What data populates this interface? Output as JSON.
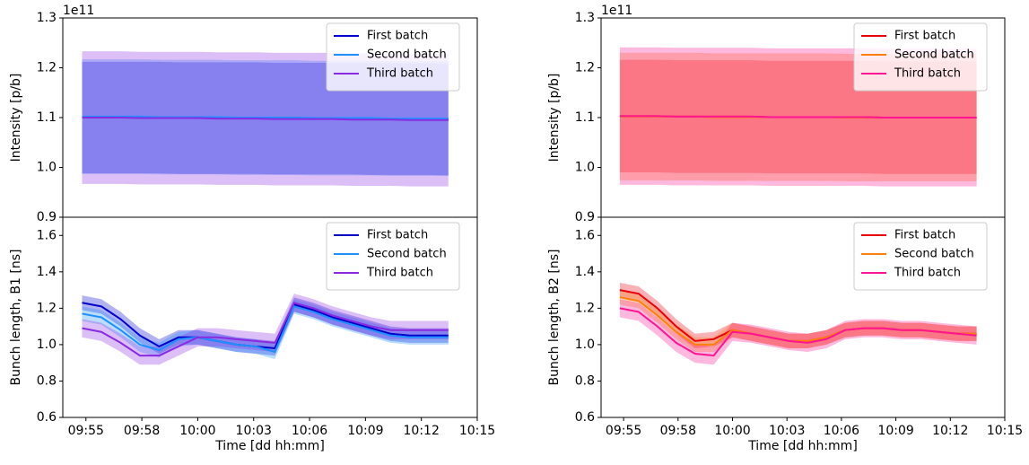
{
  "chart_data": [
    {
      "type": "line",
      "ylabel": "Intensity [p/b]",
      "y_offset_label": "1e11",
      "x": [
        594.8,
        595.8,
        596.8,
        597.8,
        598.8,
        599.8,
        600.8,
        601.8,
        602.8,
        603.8,
        604.8,
        605.8,
        606.8,
        607.8,
        608.8,
        609.8,
        610.8,
        611.8,
        612.8,
        613.8
      ],
      "xlim": [
        593.8,
        615.3
      ],
      "ylim": [
        0.9,
        1.3
      ],
      "yticks": [
        0.9,
        {
          "value": 1,
          "label": "1.0"
        },
        1.1,
        1.2,
        1.3
      ],
      "legend": "upper right",
      "series": [
        {
          "name": "First batch",
          "color": "#0000cc",
          "spread": 0.112,
          "values": [
            1.1,
            1.1,
            1.1,
            1.1,
            1.1,
            1.099,
            1.099,
            1.099,
            1.099,
            1.099,
            1.098,
            1.098,
            1.098,
            1.098,
            1.098,
            1.097,
            1.097,
            1.097,
            1.097,
            1.096
          ]
        },
        {
          "name": "Second batch",
          "color": "#1e90ff",
          "spread": 0.115,
          "values": [
            1.102,
            1.102,
            1.102,
            1.102,
            1.101,
            1.101,
            1.101,
            1.101,
            1.1,
            1.1,
            1.1,
            1.1,
            1.099,
            1.099,
            1.099,
            1.099,
            1.098,
            1.098,
            1.098,
            1.098
          ]
        },
        {
          "name": "Third batch",
          "color": "#8a2be2",
          "spread": 0.133,
          "values": [
            1.1,
            1.1,
            1.1,
            1.099,
            1.099,
            1.099,
            1.099,
            1.098,
            1.098,
            1.098,
            1.097,
            1.097,
            1.097,
            1.097,
            1.096,
            1.096,
            1.096,
            1.095,
            1.095,
            1.095
          ]
        }
      ]
    },
    {
      "type": "line",
      "ylabel": "Bunch length, B1 [ns]",
      "xlabel": "Time [dd hh:mm]",
      "x": [
        594.8,
        595.8,
        596.8,
        597.8,
        598.8,
        599.8,
        600.8,
        601.8,
        602.8,
        603.8,
        604.8,
        605.8,
        606.8,
        607.8,
        608.8,
        609.8,
        610.8,
        611.8,
        612.8,
        613.8
      ],
      "xlim": [
        593.8,
        615.3
      ],
      "ylim": [
        0.6,
        1.7
      ],
      "xticks": [
        {
          "value": 595,
          "label": "09:55"
        },
        {
          "value": 597.9,
          "label": "09:58"
        },
        {
          "value": 600.8,
          "label": "10:00"
        },
        {
          "value": 603.7,
          "label": "10:03"
        },
        {
          "value": 606.6,
          "label": "10:06"
        },
        {
          "value": 609.5,
          "label": "10:09"
        },
        {
          "value": 612.4,
          "label": "10:12"
        },
        {
          "value": 615.3,
          "label": "10:15"
        }
      ],
      "yticks": [
        0.6,
        0.8,
        {
          "value": 1,
          "label": "1.0"
        },
        1.2,
        1.4,
        1.6
      ],
      "legend": "upper right",
      "series": [
        {
          "name": "First batch",
          "color": "#0000cc",
          "spread": 0.04,
          "values": [
            1.23,
            1.21,
            1.14,
            1.05,
            0.99,
            1.04,
            1.04,
            1.02,
            1.0,
            0.99,
            0.98,
            1.22,
            1.19,
            1.15,
            1.12,
            1.09,
            1.06,
            1.05,
            1.05,
            1.05
          ]
        },
        {
          "name": "Second batch",
          "color": "#1e90ff",
          "spread": 0.04,
          "values": [
            1.17,
            1.15,
            1.08,
            1.0,
            0.97,
            1.03,
            1.04,
            1.02,
            1.0,
            0.99,
            0.96,
            1.21,
            1.18,
            1.14,
            1.11,
            1.08,
            1.05,
            1.04,
            1.04,
            1.04
          ]
        },
        {
          "name": "Third batch",
          "color": "#8a2be2",
          "spread": 0.05,
          "values": [
            1.09,
            1.07,
            1.01,
            0.94,
            0.94,
            0.99,
            1.04,
            1.04,
            1.03,
            1.02,
            1.01,
            1.23,
            1.2,
            1.16,
            1.13,
            1.1,
            1.08,
            1.08,
            1.08,
            1.08
          ]
        }
      ]
    },
    {
      "type": "line",
      "ylabel": "Intensity [p/b]",
      "y_offset_label": "1e11",
      "x": [
        594.8,
        595.8,
        596.8,
        597.8,
        598.8,
        599.8,
        600.8,
        601.8,
        602.8,
        603.8,
        604.8,
        605.8,
        606.8,
        607.8,
        608.8,
        609.8,
        610.8,
        611.8,
        612.8,
        613.8
      ],
      "xlim": [
        593.8,
        615.3
      ],
      "ylim": [
        0.9,
        1.3
      ],
      "yticks": [
        0.9,
        {
          "value": 1,
          "label": "1.0"
        },
        1.1,
        1.2,
        1.3
      ],
      "legend": "upper right",
      "series": [
        {
          "name": "First batch",
          "color": "#e8000b",
          "spread": 0.113,
          "values": [
            1.103,
            1.103,
            1.103,
            1.102,
            1.102,
            1.102,
            1.102,
            1.102,
            1.101,
            1.101,
            1.101,
            1.101,
            1.101,
            1.101,
            1.1,
            1.1,
            1.1,
            1.1,
            1.1,
            1.1
          ]
        },
        {
          "name": "Second batch",
          "color": "#ff7f0e",
          "spread": 0.128,
          "values": [
            1.102,
            1.102,
            1.102,
            1.102,
            1.102,
            1.101,
            1.101,
            1.101,
            1.101,
            1.101,
            1.101,
            1.101,
            1.1,
            1.1,
            1.1,
            1.1,
            1.1,
            1.1,
            1.1,
            1.1
          ]
        },
        {
          "name": "Third batch",
          "color": "#ff1493",
          "spread": 0.138,
          "values": [
            1.103,
            1.103,
            1.103,
            1.102,
            1.102,
            1.102,
            1.102,
            1.102,
            1.101,
            1.101,
            1.101,
            1.101,
            1.101,
            1.101,
            1.1,
            1.1,
            1.1,
            1.1,
            1.1,
            1.1
          ]
        }
      ]
    },
    {
      "type": "line",
      "ylabel": "Bunch length, B2 [ns]",
      "xlabel": "Time [dd hh:mm]",
      "x": [
        594.8,
        595.8,
        596.8,
        597.8,
        598.8,
        599.8,
        600.8,
        601.8,
        602.8,
        603.8,
        604.8,
        605.8,
        606.8,
        607.8,
        608.8,
        609.8,
        610.8,
        611.8,
        612.8,
        613.8
      ],
      "xlim": [
        593.8,
        615.3
      ],
      "ylim": [
        0.6,
        1.7
      ],
      "xticks": [
        {
          "value": 595,
          "label": "09:55"
        },
        {
          "value": 597.9,
          "label": "09:58"
        },
        {
          "value": 600.8,
          "label": "10:00"
        },
        {
          "value": 603.7,
          "label": "10:03"
        },
        {
          "value": 606.6,
          "label": "10:06"
        },
        {
          "value": 609.5,
          "label": "10:09"
        },
        {
          "value": 612.4,
          "label": "10:12"
        },
        {
          "value": 615.3,
          "label": "10:15"
        }
      ],
      "yticks": [
        0.6,
        0.8,
        {
          "value": 1,
          "label": "1.0"
        },
        1.2,
        1.4,
        1.6
      ],
      "legend": "upper right",
      "series": [
        {
          "name": "First batch",
          "color": "#e8000b",
          "spread": 0.04,
          "values": [
            1.3,
            1.28,
            1.2,
            1.1,
            1.02,
            1.03,
            1.08,
            1.06,
            1.04,
            1.02,
            1.02,
            1.04,
            1.08,
            1.09,
            1.09,
            1.08,
            1.08,
            1.07,
            1.06,
            1.06
          ]
        },
        {
          "name": "Second batch",
          "color": "#ff7f0e",
          "spread": 0.04,
          "values": [
            1.26,
            1.24,
            1.16,
            1.07,
            1.0,
            1.0,
            1.08,
            1.06,
            1.04,
            1.02,
            1.02,
            1.04,
            1.08,
            1.09,
            1.09,
            1.08,
            1.08,
            1.07,
            1.06,
            1.06
          ]
        },
        {
          "name": "Third batch",
          "color": "#ff1493",
          "spread": 0.05,
          "values": [
            1.2,
            1.18,
            1.1,
            1.01,
            0.95,
            0.94,
            1.07,
            1.06,
            1.04,
            1.02,
            1.01,
            1.03,
            1.08,
            1.09,
            1.09,
            1.08,
            1.08,
            1.07,
            1.06,
            1.05
          ]
        }
      ]
    }
  ]
}
